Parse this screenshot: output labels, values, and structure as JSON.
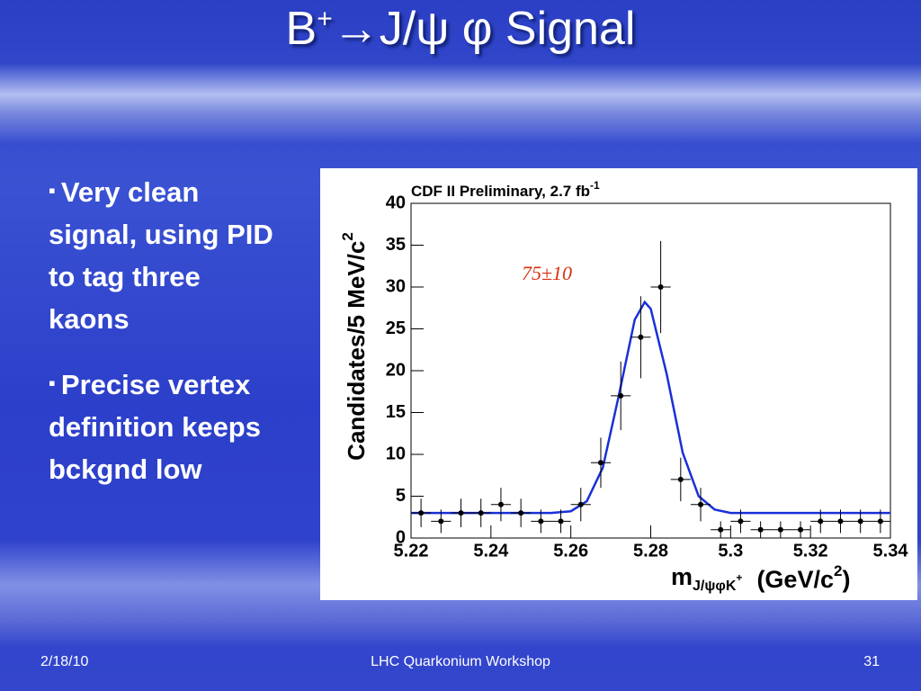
{
  "slide": {
    "title": {
      "main": "B",
      "sup": "+",
      "rest": "→J/ψ φ Signal"
    },
    "bullets": [
      "Very clean signal, using PID to tag three kaons",
      "Precise vertex definition keeps bckgnd low"
    ],
    "footer": {
      "date": "2/18/10",
      "event": "LHC Quarkonium Workshop",
      "page": "31"
    }
  },
  "chart_data": {
    "type": "scatter",
    "title": {
      "text": "CDF II Preliminary, 2.7 fb",
      "sup": "-1"
    },
    "annotation": "75±10",
    "annotation_color": "#d83010",
    "x_label": {
      "main": "m",
      "sub": "J/ψφK",
      "sub_sup": "+",
      "unit": "(GeV/c",
      "unit_sup": "2",
      "close": ")"
    },
    "y_label": {
      "text": "Candidates/5 MeV/c",
      "sup": "2"
    },
    "xlim": [
      5.22,
      5.34
    ],
    "ylim": [
      0,
      40
    ],
    "xticks": [
      5.22,
      5.24,
      5.26,
      5.28,
      5.3,
      5.32,
      5.34
    ],
    "yticks": [
      0,
      5,
      10,
      15,
      20,
      25,
      30,
      35,
      40
    ],
    "series": [
      {
        "type": "scatter",
        "color": "#000000",
        "x": [
          5.2225,
          5.2275,
          5.2325,
          5.2375,
          5.2425,
          5.2475,
          5.2525,
          5.2575,
          5.2625,
          5.2675,
          5.2725,
          5.2775,
          5.2825,
          5.2875,
          5.2925,
          5.2975,
          5.3025,
          5.3075,
          5.3125,
          5.3175,
          5.3225,
          5.3275,
          5.3325,
          5.3375
        ],
        "values": [
          3,
          2,
          3,
          3,
          4,
          3,
          2,
          2,
          4,
          9,
          17,
          24,
          30,
          7,
          4,
          1,
          2,
          1,
          1,
          1,
          2,
          2,
          2,
          2
        ],
        "errors": [
          1.7,
          1.4,
          1.7,
          1.7,
          2,
          1.7,
          1.4,
          1.4,
          2,
          3,
          4.1,
          4.9,
          5.5,
          2.6,
          2,
          1,
          1.4,
          1,
          1,
          1,
          1.4,
          1.4,
          1.4,
          1.4
        ],
        "x_error": 0.0025
      },
      {
        "type": "line",
        "color": "#1a30d8",
        "x": [
          5.22,
          5.24,
          5.255,
          5.26,
          5.264,
          5.268,
          5.272,
          5.276,
          5.2785,
          5.28,
          5.284,
          5.288,
          5.292,
          5.296,
          5.3,
          5.34
        ],
        "values": [
          3,
          3,
          3,
          3.2,
          4.4,
          8.4,
          17,
          26.1,
          28.2,
          27.4,
          19.6,
          10.2,
          5,
          3.4,
          3,
          3
        ]
      }
    ]
  }
}
